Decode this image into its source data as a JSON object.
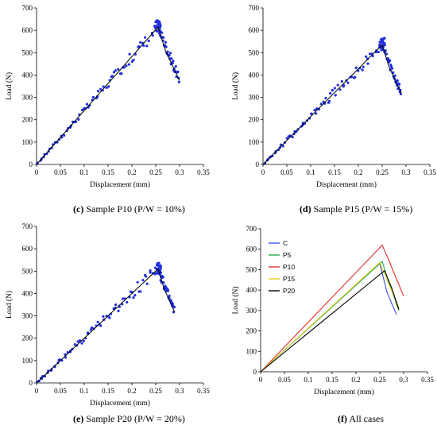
{
  "colors": {
    "scatter": "#1f2fe0",
    "fit": "#000000",
    "axis": "#000000"
  },
  "chart_data": [
    {
      "id": "c",
      "type": "scatter",
      "xlabel": "Displacement (mm)",
      "ylabel": "Load (N)",
      "xlim": [
        0,
        0.35
      ],
      "ylim": [
        0,
        700
      ],
      "xticks": [
        "0",
        "0.05",
        "0.1",
        "0.15",
        "0.2",
        "0.25",
        "0.3",
        "0.35"
      ],
      "yticks": [
        "0",
        "100",
        "200",
        "300",
        "400",
        "500",
        "600",
        "700"
      ],
      "peak": {
        "x": 0.255,
        "y": 615
      },
      "end": {
        "x": 0.3,
        "y": 375
      },
      "caption": {
        "letter": "(c)",
        "text": "Sample P10 (P/W = 10%)"
      }
    },
    {
      "id": "d",
      "type": "scatter",
      "xlabel": "Displacement (mm)",
      "ylabel": "Load (N)",
      "xlim": [
        0,
        0.35
      ],
      "ylim": [
        0,
        700
      ],
      "xticks": [
        "0",
        "0.05",
        "0.1",
        "0.15",
        "0.2",
        "0.25",
        "0.3",
        "0.35"
      ],
      "yticks": [
        "0",
        "100",
        "200",
        "300",
        "400",
        "500",
        "600",
        "700"
      ],
      "peak": {
        "x": 0.25,
        "y": 535
      },
      "end": {
        "x": 0.29,
        "y": 320
      },
      "caption": {
        "letter": "(d)",
        "text": "Sample P15 (P/W = 15%)"
      }
    },
    {
      "id": "e",
      "type": "scatter",
      "xlabel": "Displacement (mm)",
      "ylabel": "Load (N)",
      "xlim": [
        0,
        0.35
      ],
      "ylim": [
        0,
        700
      ],
      "xticks": [
        "0",
        "0.05",
        "0.1",
        "0.15",
        "0.2",
        "0.25",
        "0.3",
        "0.35"
      ],
      "yticks": [
        "0",
        "100",
        "200",
        "300",
        "400",
        "500",
        "600",
        "700"
      ],
      "peak": {
        "x": 0.255,
        "y": 510
      },
      "end": {
        "x": 0.29,
        "y": 315
      },
      "caption": {
        "letter": "(e)",
        "text": "Sample P20 (P/W = 20%)"
      }
    },
    {
      "id": "f",
      "type": "line",
      "xlabel": "Displacement (mm)",
      "ylabel": "Load (N)",
      "xlim": [
        0,
        0.35
      ],
      "ylim": [
        0,
        700
      ],
      "xticks": [
        "0",
        "0.05",
        "0.1",
        "0.15",
        "0.2",
        "0.25",
        "0.3",
        "0.35"
      ],
      "yticks": [
        "0",
        "100",
        "200",
        "300",
        "400",
        "500",
        "600",
        "700"
      ],
      "series": [
        {
          "name": "C",
          "color": "#3a4ee0",
          "x": [
            0,
            0.25,
            0.265,
            0.285
          ],
          "y": [
            0,
            530,
            390,
            280
          ]
        },
        {
          "name": "P5",
          "color": "#22b04a",
          "x": [
            0,
            0.255,
            0.27,
            0.29
          ],
          "y": [
            0,
            540,
            430,
            300
          ]
        },
        {
          "name": "P10",
          "color": "#e03030",
          "x": [
            0,
            0.255,
            0.27,
            0.3
          ],
          "y": [
            0,
            620,
            540,
            370
          ]
        },
        {
          "name": "P15",
          "color": "#e0d020",
          "x": [
            0,
            0.25,
            0.265,
            0.29
          ],
          "y": [
            0,
            535,
            450,
            315
          ]
        },
        {
          "name": "P20",
          "color": "#000000",
          "x": [
            0,
            0.26,
            0.275,
            0.29
          ],
          "y": [
            0,
            495,
            410,
            305
          ]
        }
      ],
      "legend": "top-left",
      "caption": {
        "letter": "(f)",
        "text": "All cases"
      }
    }
  ]
}
